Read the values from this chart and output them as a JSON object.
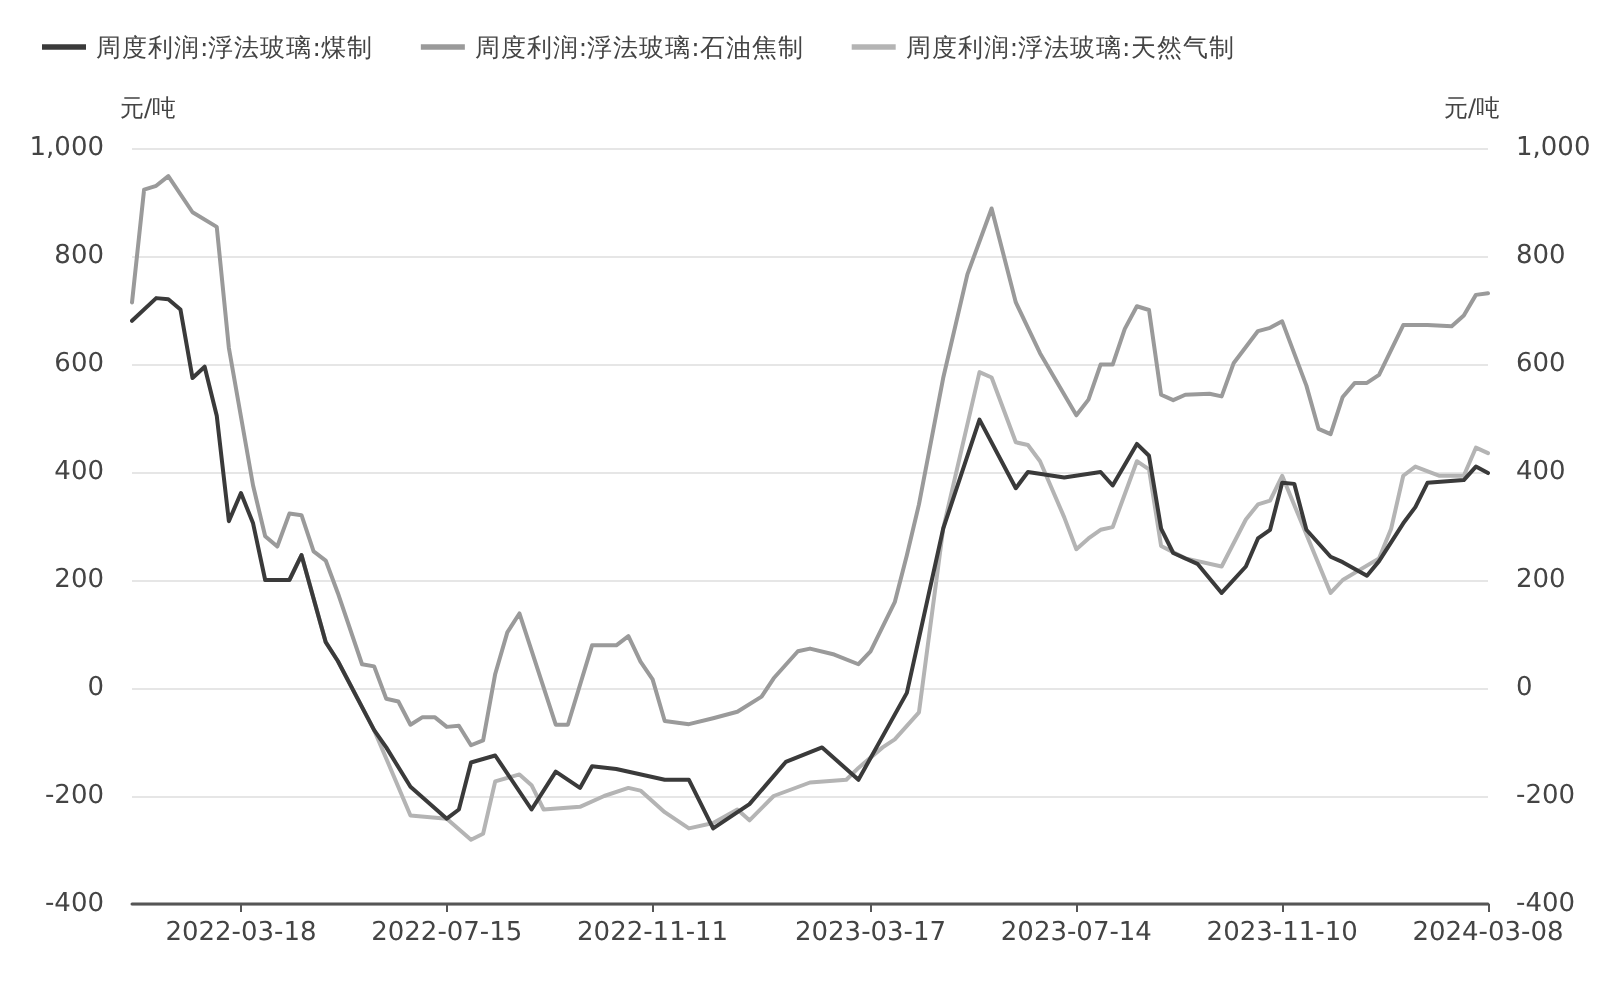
{
  "chart_data": {
    "type": "line",
    "ylabel": "元/吨",
    "y2label": "元/吨",
    "xlim": [
      "2022-01-14",
      "2024-03-08"
    ],
    "xticks": [
      "2022-03-18",
      "2022-07-15",
      "2022-11-11",
      "2023-03-17",
      "2023-07-14",
      "2023-11-10",
      "2024-03-08"
    ],
    "ylim": [
      -400,
      1000
    ],
    "yticks": [
      -400,
      -200,
      0,
      200,
      400,
      600,
      800,
      {
        "value": 1000,
        "label": "1,000"
      }
    ],
    "y2lim": [
      -400,
      1000
    ],
    "y2ticks": [
      -400,
      -200,
      0,
      200,
      400,
      600,
      800,
      {
        "value": 1000,
        "label": "1,000"
      }
    ],
    "grid": "y",
    "legend": "top left",
    "marker": "none",
    "line_style": "solid",
    "series": [
      {
        "name": "周度利润:浮法玻璃:煤制",
        "color": "#3a3a3a",
        "x": [
          "2022-01-14",
          "2022-01-28",
          "2022-02-04",
          "2022-02-11",
          "2022-02-18",
          "2022-02-25",
          "2022-03-04",
          "2022-03-11",
          "2022-03-18",
          "2022-03-25",
          "2022-04-01",
          "2022-04-15",
          "2022-04-22",
          "2022-05-06",
          "2022-05-13",
          "2022-06-03",
          "2022-06-10",
          "2022-06-24",
          "2022-07-15",
          "2022-07-22",
          "2022-07-29",
          "2022-08-12",
          "2022-09-02",
          "2022-09-16",
          "2022-09-30",
          "2022-10-07",
          "2022-10-21",
          "2022-11-18",
          "2022-12-02",
          "2022-12-16",
          "2023-01-06",
          "2023-01-27",
          "2023-02-17",
          "2023-03-10",
          "2023-04-07",
          "2023-04-28",
          "2023-05-19",
          "2023-06-09",
          "2023-06-16",
          "2023-07-07",
          "2023-07-28",
          "2023-08-04",
          "2023-08-18",
          "2023-08-25",
          "2023-09-01",
          "2023-09-08",
          "2023-09-22",
          "2023-10-06",
          "2023-10-20",
          "2023-10-27",
          "2023-11-03",
          "2023-11-10",
          "2023-11-17",
          "2023-11-24",
          "2023-12-08",
          "2023-12-15",
          "2023-12-29",
          "2024-01-05",
          "2024-01-19",
          "2024-01-26",
          "2024-02-02",
          "2024-02-23",
          "2024-03-01",
          "2024-03-08"
        ],
        "values": [
          680,
          722,
          720,
          701,
          574,
          595,
          504,
          309,
          361,
          305,
          200,
          200,
          246,
          85,
          50,
          -78,
          -110,
          -183,
          -242,
          -225,
          -138,
          -125,
          -225,
          -155,
          -185,
          -145,
          -150,
          -170,
          -170,
          -260,
          -215,
          -137,
          -110,
          -170,
          -9,
          295,
          497,
          370,
          400,
          390,
          400,
          375,
          452,
          430,
          295,
          250,
          230,
          176,
          225,
          277,
          293,
          380,
          378,
          293,
          243,
          233,
          208,
          235,
          305,
          335,
          380,
          385,
          410,
          398
        ]
      },
      {
        "name": "周度利润:浮法玻璃:石油焦制",
        "color": "#9a9a9a",
        "x": [
          "2022-01-14",
          "2022-01-21",
          "2022-01-28",
          "2022-02-04",
          "2022-02-18",
          "2022-03-04",
          "2022-03-11",
          "2022-03-25",
          "2022-04-01",
          "2022-04-08",
          "2022-04-15",
          "2022-04-22",
          "2022-04-29",
          "2022-05-06",
          "2022-05-13",
          "2022-05-27",
          "2022-06-03",
          "2022-06-10",
          "2022-06-17",
          "2022-06-24",
          "2022-07-01",
          "2022-07-08",
          "2022-07-15",
          "2022-07-22",
          "2022-07-29",
          "2022-08-05",
          "2022-08-12",
          "2022-08-19",
          "2022-08-26",
          "2022-09-16",
          "2022-09-23",
          "2022-10-07",
          "2022-10-21",
          "2022-10-28",
          "2022-11-04",
          "2022-11-11",
          "2022-11-18",
          "2022-12-02",
          "2022-12-16",
          "2022-12-30",
          "2023-01-13",
          "2023-01-20",
          "2023-02-03",
          "2023-02-10",
          "2023-02-24",
          "2023-03-10",
          "2023-03-17",
          "2023-03-31",
          "2023-04-07",
          "2023-04-14",
          "2023-04-28",
          "2023-05-12",
          "2023-05-26",
          "2023-06-09",
          "2023-06-23",
          "2023-07-14",
          "2023-07-21",
          "2023-07-28",
          "2023-08-04",
          "2023-08-11",
          "2023-08-18",
          "2023-08-25",
          "2023-09-01",
          "2023-09-08",
          "2023-09-15",
          "2023-09-29",
          "2023-10-06",
          "2023-10-13",
          "2023-10-27",
          "2023-11-03",
          "2023-11-10",
          "2023-11-24",
          "2023-12-01",
          "2023-12-08",
          "2023-12-15",
          "2023-12-22",
          "2023-12-29",
          "2024-01-05",
          "2024-01-19",
          "2024-02-02",
          "2024-02-16",
          "2024-02-23",
          "2024-03-01",
          "2024-03-08"
        ],
        "values": [
          714,
          923,
          930,
          948,
          881,
          854,
          630,
          375,
          281,
          262,
          323,
          320,
          253,
          236,
          176,
          44,
          40,
          -20,
          -25,
          -68,
          -54,
          -54,
          -72,
          -70,
          -106,
          -97,
          26,
          103,
          138,
          -68,
          -68,
          79,
          79,
          96,
          49,
          16,
          -61,
          -67,
          -56,
          -44,
          -16,
          18,
          68,
          73,
          62,
          44,
          68,
          159,
          246,
          340,
          574,
          766,
          888,
          714,
          620,
          505,
          534,
          599,
          599,
          665,
          707,
          700,
          543,
          533,
          543,
          545,
          540,
          602,
          661,
          667,
          679,
          560,
          480,
          470,
          539,
          565,
          565,
          580,
          672,
          672,
          670,
          690,
          728,
          731
        ]
      },
      {
        "name": "周度利润:浮法玻璃:天然气制",
        "color": "#b4b4b4",
        "x": [
          "2022-04-01",
          "2022-04-15",
          "2022-04-22",
          "2022-05-06",
          "2022-05-13",
          "2022-06-03",
          "2022-06-24",
          "2022-07-15",
          "2022-07-29",
          "2022-08-05",
          "2022-08-12",
          "2022-08-26",
          "2022-09-02",
          "2022-09-09",
          "2022-09-30",
          "2022-10-14",
          "2022-10-28",
          "2022-11-04",
          "2022-11-18",
          "2022-12-02",
          "2022-12-16",
          "2022-12-30",
          "2023-01-06",
          "2023-01-20",
          "2023-02-10",
          "2023-03-03",
          "2023-03-10",
          "2023-03-24",
          "2023-03-31",
          "2023-04-14",
          "2023-04-28",
          "2023-05-19",
          "2023-05-26",
          "2023-06-09",
          "2023-06-16",
          "2023-06-23",
          "2023-07-07",
          "2023-07-14",
          "2023-07-21",
          "2023-07-28",
          "2023-08-04",
          "2023-08-18",
          "2023-08-25",
          "2023-09-01",
          "2023-09-15",
          "2023-10-06",
          "2023-10-20",
          "2023-10-27",
          "2023-11-03",
          "2023-11-10",
          "2023-12-08",
          "2023-12-15",
          "2024-01-05",
          "2024-01-12",
          "2024-01-19",
          "2024-01-26",
          "2024-02-09",
          "2024-02-23",
          "2024-03-01",
          "2024-03-08"
        ],
        "values": [
          200,
          200,
          246,
          85,
          50,
          -78,
          -236,
          -242,
          -281,
          -270,
          -173,
          -160,
          -180,
          -225,
          -220,
          -200,
          -185,
          -190,
          -230,
          -260,
          -250,
          -225,
          -245,
          -200,
          -175,
          -170,
          -148,
          -110,
          -95,
          -45,
          295,
          585,
          575,
          455,
          450,
          420,
          316,
          257,
          277,
          293,
          298,
          420,
          405,
          263,
          240,
          225,
          312,
          340,
          347,
          393,
          176,
          200,
          240,
          295,
          393,
          410,
          393,
          393,
          445,
          435
        ]
      }
    ]
  }
}
